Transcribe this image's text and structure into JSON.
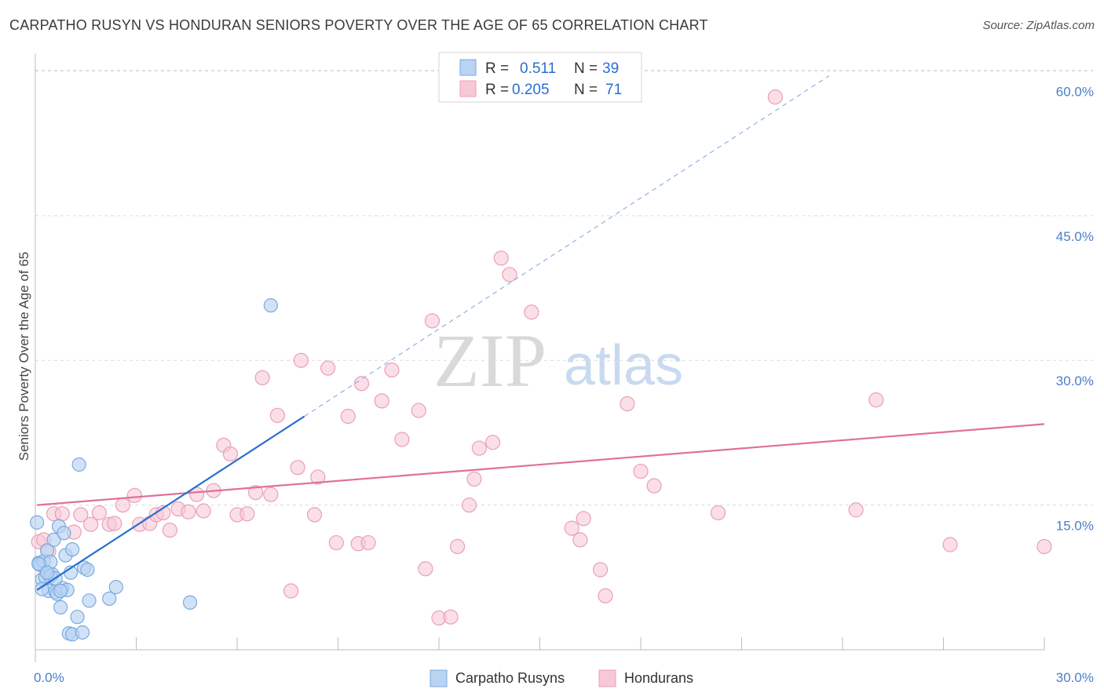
{
  "chart_data": {
    "type": "scatter",
    "title": "CARPATHO RUSYN VS HONDURAN SENIORS POVERTY OVER THE AGE OF 65 CORRELATION CHART",
    "source": "Source: ZipAtlas.com",
    "ylabel": "Seniors Poverty Over the Age of 65",
    "xlim": [
      0,
      30
    ],
    "ylim": [
      0,
      61.5
    ],
    "x_tick_labels": [
      "0.0%",
      "30.0%"
    ],
    "y_ticks": [
      15,
      30,
      45,
      60
    ],
    "y_tick_labels": [
      "15.0%",
      "30.0%",
      "45.0%",
      "60.0%"
    ],
    "watermark": {
      "zip": "ZIP",
      "atlas": "atlas"
    },
    "legend": {
      "rows": [
        {
          "r_label": "R =",
          "r_value": "0.511",
          "n_label": "N =",
          "n_value": "39"
        },
        {
          "r_label": "R =",
          "r_value": "0.205",
          "n_label": "N =",
          "n_value": "71"
        }
      ]
    },
    "series": [
      {
        "name": "Carpatho Rusyns",
        "color": "#7aaae0",
        "fill": "#b9d3f2",
        "trend_color": "#2a6fd0",
        "trend": {
          "x0": 0.05,
          "y0": 6.2,
          "x1": 8.0,
          "y1": 24.2,
          "dash_x1": 23.6,
          "dash_y1": 59.5
        },
        "points": [
          [
            0.05,
            13.2
          ],
          [
            0.1,
            9.0
          ],
          [
            0.15,
            8.8
          ],
          [
            0.2,
            7.3
          ],
          [
            0.25,
            9.2
          ],
          [
            0.3,
            7.5
          ],
          [
            0.35,
            10.3
          ],
          [
            0.4,
            6.1
          ],
          [
            0.45,
            9.1
          ],
          [
            0.5,
            7.8
          ],
          [
            0.55,
            11.4
          ],
          [
            0.6,
            6.0
          ],
          [
            0.65,
            5.8
          ],
          [
            0.7,
            12.8
          ],
          [
            0.75,
            4.4
          ],
          [
            0.8,
            6.4
          ],
          [
            0.85,
            12.1
          ],
          [
            0.9,
            9.8
          ],
          [
            0.95,
            6.2
          ],
          [
            1.0,
            1.7
          ],
          [
            1.05,
            8.0
          ],
          [
            1.1,
            10.4
          ],
          [
            1.1,
            1.6
          ],
          [
            1.25,
            3.4
          ],
          [
            1.3,
            19.2
          ],
          [
            1.4,
            1.8
          ],
          [
            1.45,
            8.5
          ],
          [
            1.55,
            8.3
          ],
          [
            1.6,
            5.1
          ],
          [
            2.2,
            5.3
          ],
          [
            2.4,
            6.5
          ],
          [
            4.6,
            4.9
          ],
          [
            7.0,
            35.7
          ],
          [
            0.1,
            8.9
          ],
          [
            0.45,
            7.6
          ],
          [
            0.2,
            6.3
          ],
          [
            0.6,
            7.4
          ],
          [
            0.75,
            6.1
          ],
          [
            0.35,
            8.0
          ]
        ]
      },
      {
        "name": "Hondurans",
        "color": "#eb9fb6",
        "fill": "#f7c9d7",
        "trend_color": "#e0709a",
        "trend": {
          "x0": 0.05,
          "y0": 15.0,
          "x1": 30.0,
          "y1": 23.4
        },
        "points": [
          [
            0.1,
            11.2
          ],
          [
            0.25,
            11.4
          ],
          [
            0.4,
            10.2
          ],
          [
            0.55,
            14.1
          ],
          [
            0.8,
            14.1
          ],
          [
            1.15,
            12.2
          ],
          [
            1.35,
            14.0
          ],
          [
            1.65,
            13.0
          ],
          [
            1.9,
            14.2
          ],
          [
            2.2,
            13.0
          ],
          [
            2.35,
            13.1
          ],
          [
            2.6,
            15.0
          ],
          [
            2.95,
            16.0
          ],
          [
            3.1,
            13.0
          ],
          [
            3.4,
            13.1
          ],
          [
            3.6,
            14.0
          ],
          [
            3.8,
            14.2
          ],
          [
            4.0,
            12.4
          ],
          [
            4.25,
            14.6
          ],
          [
            4.55,
            14.3
          ],
          [
            4.8,
            16.1
          ],
          [
            5.0,
            14.4
          ],
          [
            5.3,
            16.5
          ],
          [
            5.6,
            21.2
          ],
          [
            5.8,
            20.3
          ],
          [
            6.0,
            14.0
          ],
          [
            6.3,
            14.1
          ],
          [
            6.55,
            16.3
          ],
          [
            6.75,
            28.2
          ],
          [
            7.0,
            16.1
          ],
          [
            7.2,
            24.3
          ],
          [
            7.6,
            6.1
          ],
          [
            7.8,
            18.9
          ],
          [
            7.9,
            30.0
          ],
          [
            8.3,
            14.0
          ],
          [
            8.4,
            17.9
          ],
          [
            8.7,
            29.2
          ],
          [
            8.95,
            11.1
          ],
          [
            9.3,
            24.2
          ],
          [
            9.6,
            11.0
          ],
          [
            9.7,
            27.6
          ],
          [
            9.9,
            11.1
          ],
          [
            10.3,
            25.8
          ],
          [
            10.6,
            29.0
          ],
          [
            10.9,
            21.8
          ],
          [
            11.4,
            24.8
          ],
          [
            11.6,
            8.4
          ],
          [
            11.8,
            34.1
          ],
          [
            12.0,
            3.3
          ],
          [
            12.35,
            3.4
          ],
          [
            12.55,
            10.7
          ],
          [
            12.9,
            15.0
          ],
          [
            13.05,
            17.7
          ],
          [
            13.2,
            20.9
          ],
          [
            13.6,
            21.5
          ],
          [
            13.85,
            40.6
          ],
          [
            14.1,
            38.9
          ],
          [
            14.75,
            35.0
          ],
          [
            15.95,
            12.6
          ],
          [
            16.3,
            13.6
          ],
          [
            16.2,
            11.4
          ],
          [
            16.8,
            8.3
          ],
          [
            16.95,
            5.6
          ],
          [
            17.6,
            25.5
          ],
          [
            18.0,
            18.5
          ],
          [
            18.4,
            17.0
          ],
          [
            20.3,
            14.2
          ],
          [
            22.0,
            57.3
          ],
          [
            24.4,
            14.5
          ],
          [
            25.0,
            25.9
          ],
          [
            27.2,
            10.9
          ]
        ]
      }
    ],
    "extra_points": [
      [
        30.0,
        10.7
      ]
    ]
  }
}
